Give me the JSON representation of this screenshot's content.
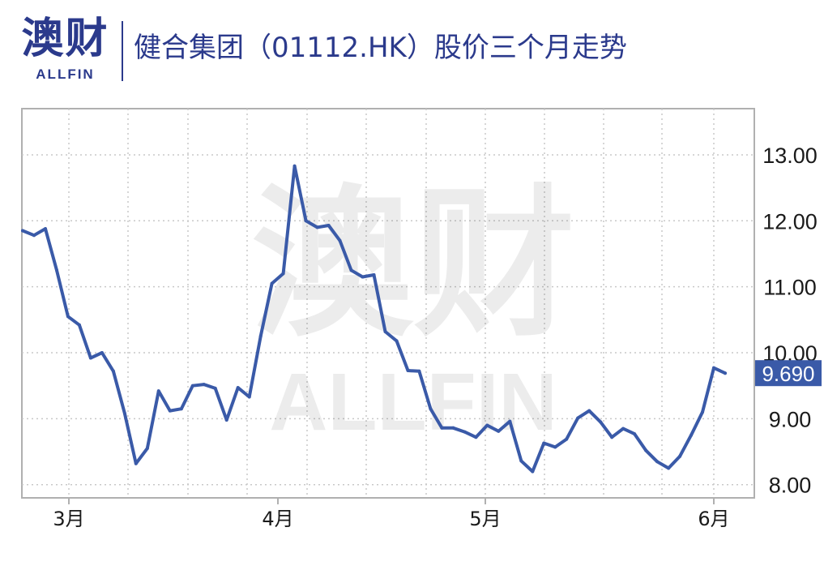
{
  "logo": {
    "cn": "澳财",
    "en": "ALLFIN"
  },
  "title": "健合集团（01112.HK）股价三个月走势",
  "colors": {
    "line": "#3a5aa8",
    "grid": "#c8c8c8",
    "frame": "#b0b0b0",
    "brand": "#2b3a8c",
    "label_bg": "#3a5aa8"
  },
  "chart_data": {
    "type": "line",
    "title": "健合集团（01112.HK）股价三个月走势",
    "xlabel": "",
    "ylabel": "",
    "ylim": [
      7.8,
      13.7
    ],
    "x_tick_labels": [
      "3月",
      "4月",
      "5月",
      "6月"
    ],
    "y_tick_labels": [
      "13.00",
      "12.00",
      "11.00",
      "10.00",
      "9.00",
      "8.00"
    ],
    "y_ticks": [
      13,
      12,
      11,
      10,
      9,
      8
    ],
    "last_value_label": "9.690",
    "grid": true,
    "legend": "none",
    "series": [
      {
        "values": [
          11.85,
          11.78,
          11.88,
          11.25,
          10.55,
          10.42,
          9.92,
          10.0,
          9.72,
          9.08,
          8.32,
          8.55,
          9.42,
          9.12,
          9.15,
          9.5,
          9.52,
          9.46,
          8.98,
          9.47,
          9.33,
          10.25,
          11.05,
          11.2,
          12.83,
          12.0,
          11.9,
          11.93,
          11.7,
          11.25,
          11.15,
          11.18,
          10.32,
          10.18,
          9.73,
          9.72,
          9.15,
          8.86,
          8.86,
          8.8,
          8.72,
          8.9,
          8.81,
          8.96,
          8.36,
          8.2,
          8.63,
          8.57,
          8.69,
          9.01,
          9.12,
          8.95,
          8.72,
          8.85,
          8.77,
          8.52,
          8.35,
          8.25,
          8.43,
          8.75,
          9.1,
          9.77,
          9.69
        ]
      }
    ]
  }
}
